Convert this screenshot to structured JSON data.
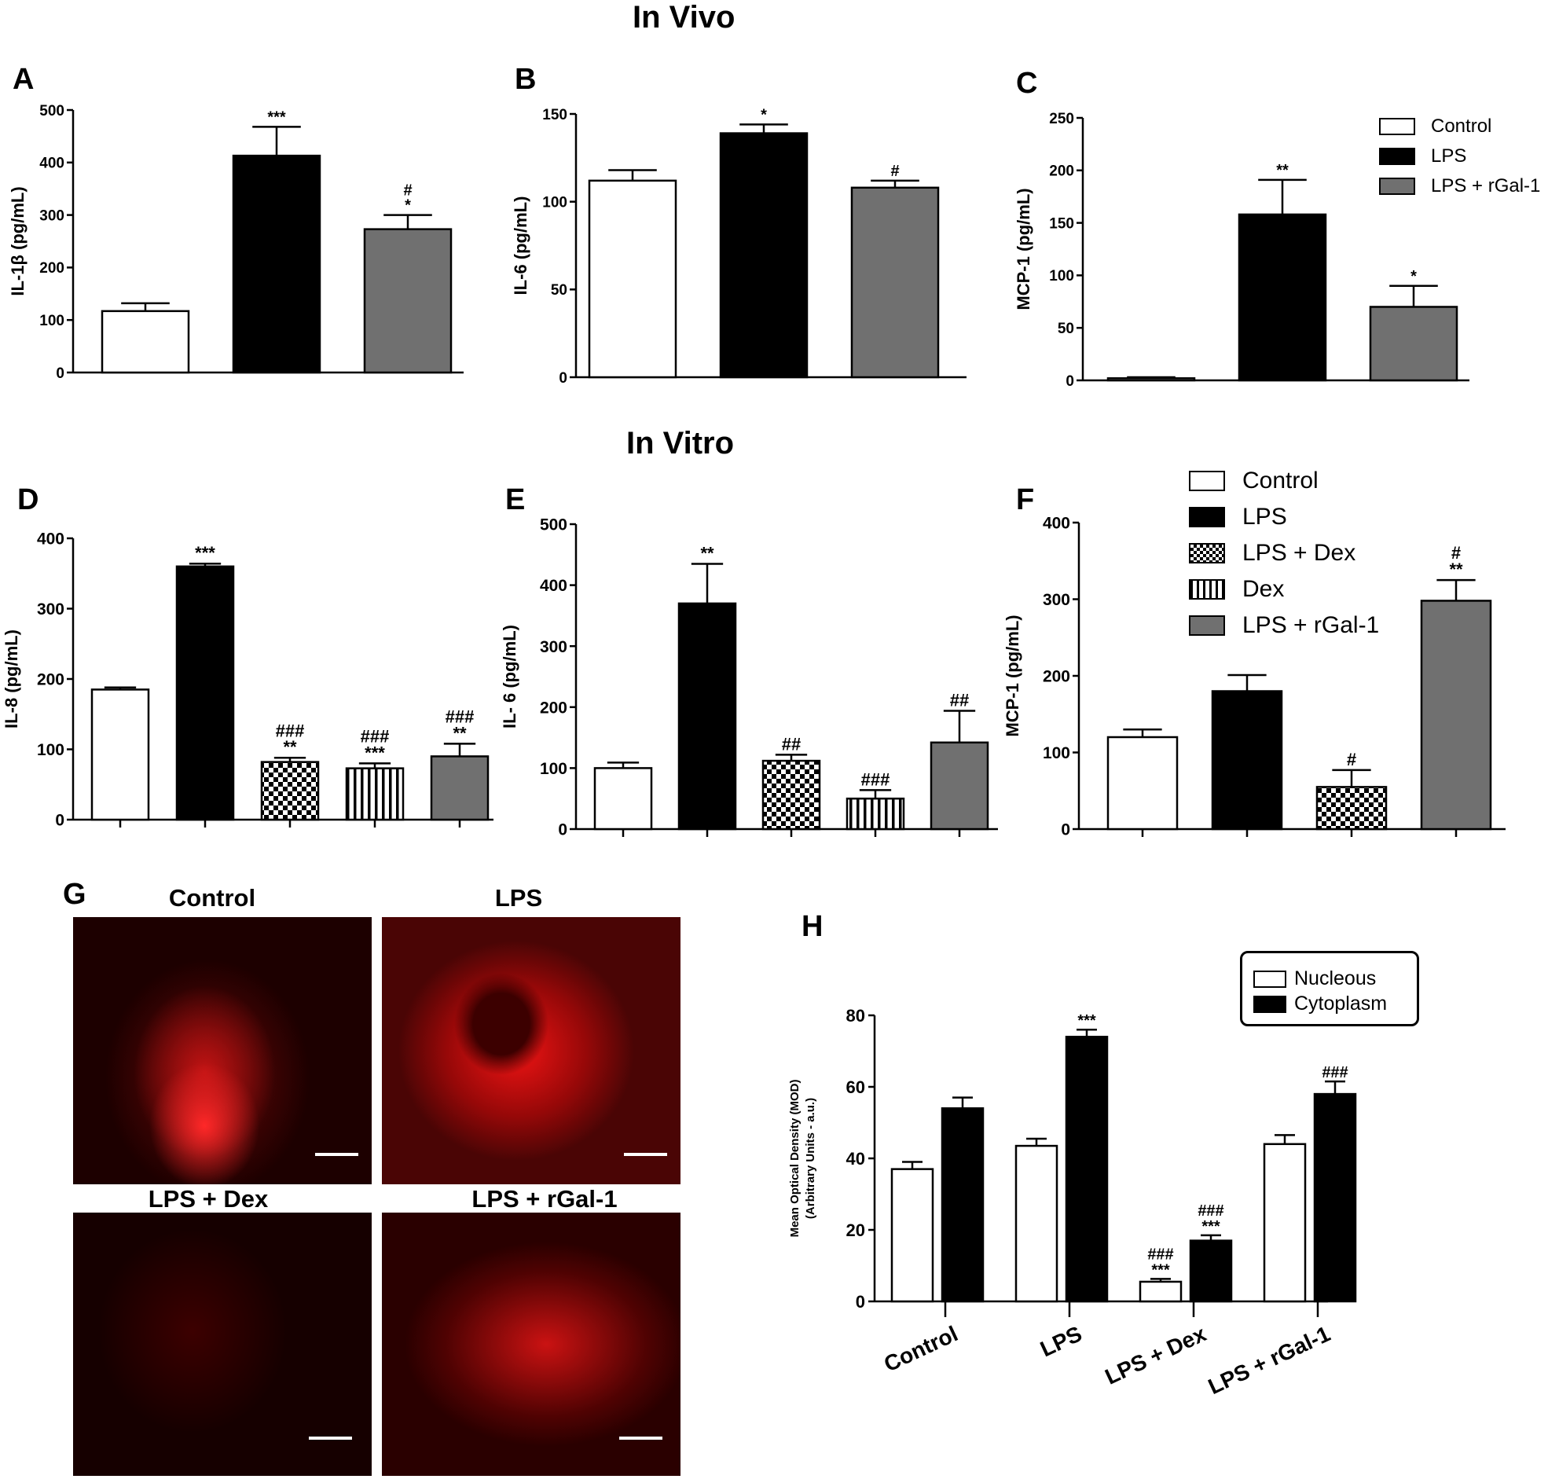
{
  "sections": {
    "in_vivo": "In Vivo",
    "in_vitro": "In Vitro"
  },
  "colors": {
    "control": "#ffffff",
    "lps": "#000000",
    "dex_lps": "checker",
    "dex": "vertical-stripes",
    "rgal": "#707070",
    "nucleus": "#ffffff",
    "cytoplasm": "#000000",
    "fluorescence": "#ff1a1a"
  },
  "legend_in_vivo": [
    "Control",
    "LPS",
    "LPS + rGal-1"
  ],
  "legend_in_vitro": [
    "Control",
    "LPS",
    "LPS + Dex",
    "Dex",
    "LPS + rGal-1"
  ],
  "legend_h": [
    "Nucleous",
    "Cytoplasm"
  ],
  "microscopy": {
    "panel_letter": "G",
    "images": [
      {
        "label": "Control"
      },
      {
        "label": "LPS"
      },
      {
        "label": "LPS + Dex"
      },
      {
        "label": "LPS + rGal-1"
      }
    ]
  },
  "chart_data": [
    {
      "panel": "A",
      "type": "bar",
      "title": "",
      "xlabel": "",
      "ylabel": "IL-1β (pg/mL)",
      "ylim": [
        0,
        500
      ],
      "yticks": [
        0,
        100,
        200,
        300,
        400,
        500
      ],
      "categories": [
        "Control",
        "LPS",
        "LPS + rGal-1"
      ],
      "values": [
        117,
        413,
        273
      ],
      "errors": [
        15,
        55,
        27
      ],
      "annotations": [
        "",
        "***",
        "#\n*"
      ]
    },
    {
      "panel": "B",
      "type": "bar",
      "title": "",
      "xlabel": "",
      "ylabel": "IL-6 (pg/mL)",
      "ylim": [
        0,
        150
      ],
      "yticks": [
        0,
        50,
        100,
        150
      ],
      "categories": [
        "Control",
        "LPS",
        "LPS + rGal-1"
      ],
      "values": [
        112,
        139,
        108
      ],
      "errors": [
        6,
        5,
        4
      ],
      "annotations": [
        "",
        "*",
        "#"
      ]
    },
    {
      "panel": "C",
      "type": "bar",
      "title": "",
      "xlabel": "",
      "ylabel": "MCP-1 (pg/mL)",
      "ylim": [
        0,
        250
      ],
      "yticks": [
        0,
        50,
        100,
        150,
        200,
        250
      ],
      "categories": [
        "Control",
        "LPS",
        "LPS + rGal-1"
      ],
      "values": [
        2,
        158,
        70
      ],
      "errors": [
        1,
        33,
        20
      ],
      "annotations": [
        "",
        "**",
        "*"
      ]
    },
    {
      "panel": "D",
      "type": "bar",
      "title": "",
      "xlabel": "",
      "ylabel": "IL-8 (pg/mL)",
      "ylim": [
        0,
        400
      ],
      "yticks": [
        0,
        100,
        200,
        300,
        400
      ],
      "categories": [
        "Control",
        "LPS",
        "LPS + Dex",
        "Dex",
        "LPS + rGal-1"
      ],
      "values": [
        185,
        360,
        82,
        73,
        90
      ],
      "errors": [
        3,
        4,
        6,
        7,
        18
      ],
      "annotations": [
        "",
        "***",
        "###\n**",
        "###\n***",
        "###\n**"
      ]
    },
    {
      "panel": "E",
      "type": "bar",
      "title": "",
      "xlabel": "",
      "ylabel": "IL- 6 (pg/mL)",
      "ylim": [
        0,
        500
      ],
      "yticks": [
        0,
        100,
        200,
        300,
        400,
        500
      ],
      "categories": [
        "Control",
        "LPS",
        "LPS + Dex",
        "Dex",
        "LPS + rGal-1"
      ],
      "values": [
        100,
        370,
        112,
        50,
        142
      ],
      "errors": [
        9,
        65,
        10,
        14,
        52
      ],
      "annotations": [
        "",
        "**",
        "##",
        "###",
        "##"
      ]
    },
    {
      "panel": "F",
      "type": "bar",
      "title": "",
      "xlabel": "",
      "ylabel": "MCP-1 (pg/mL)",
      "ylim": [
        0,
        400
      ],
      "yticks": [
        0,
        100,
        200,
        300,
        400
      ],
      "categories": [
        "Control",
        "LPS",
        "LPS + Dex",
        "LPS + rGal-1"
      ],
      "values": [
        120,
        180,
        55,
        298
      ],
      "errors": [
        10,
        21,
        22,
        27
      ],
      "annotations": [
        "",
        "",
        "#",
        "#\n**"
      ]
    },
    {
      "panel": "H",
      "type": "bar",
      "title": "",
      "xlabel": "",
      "ylabel": "Mean Optical Density (MOD)\n(Arbitrary Units  - a.u.)",
      "ylim": [
        0,
        80
      ],
      "yticks": [
        0,
        20,
        40,
        60,
        80
      ],
      "categories": [
        "Control",
        "LPS",
        "LPS + Dex",
        "LPS + rGal-1"
      ],
      "series": [
        {
          "name": "Nucleous",
          "values": [
            37,
            43.5,
            5.5,
            44
          ],
          "errors": [
            2,
            2,
            0.8,
            2.5
          ],
          "annotations": [
            "",
            "",
            "###\n***",
            ""
          ]
        },
        {
          "name": "Cytoplasm",
          "values": [
            54,
            74,
            17,
            58
          ],
          "errors": [
            3,
            2,
            1.5,
            3.5
          ],
          "annotations": [
            "",
            "***",
            "###\n***",
            "###"
          ]
        }
      ]
    }
  ]
}
